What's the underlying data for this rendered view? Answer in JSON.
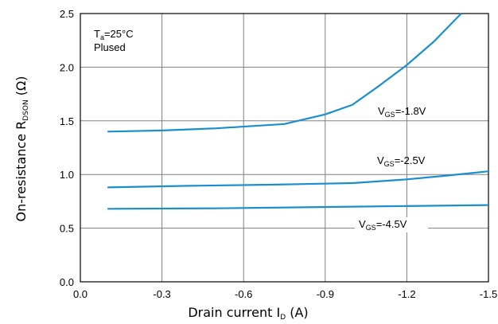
{
  "chart_data": {
    "type": "line",
    "xlabel": {
      "main": "Drain  current  I",
      "sub": "D",
      "unit": " (A)"
    },
    "ylabel": {
      "main": "On-resistance R",
      "sub": "DSON",
      "unit": " (Ω)"
    },
    "x_ticks": [
      "0.0",
      "-0.3",
      "-0.6",
      "-0.9",
      "-1.2",
      "-1.5"
    ],
    "y_ticks": [
      "0.0",
      "0.5",
      "1.0",
      "1.5",
      "2.0",
      "2.5"
    ],
    "xlim": [
      0,
      -1.5
    ],
    "ylim": [
      0,
      2.5
    ],
    "grid": true,
    "line_color": "#1a8fd0",
    "conditions": {
      "temp_main": "T",
      "temp_sub": "a",
      "temp_value": "=25°C",
      "mode": "Plused"
    },
    "series": [
      {
        "name": {
          "main": "V",
          "sub": "GS",
          "value": "=-1.8V"
        },
        "x": [
          -0.1,
          -0.3,
          -0.5,
          -0.75,
          -0.9,
          -1.0,
          -1.1,
          -1.2,
          -1.3,
          -1.4
        ],
        "y": [
          1.4,
          1.41,
          1.43,
          1.47,
          1.56,
          1.65,
          1.83,
          2.02,
          2.24,
          2.5
        ]
      },
      {
        "name": {
          "main": "V",
          "sub": "GS",
          "value": "=-2.5V"
        },
        "x": [
          -0.1,
          -0.4,
          -0.7,
          -1.0,
          -1.2,
          -1.35,
          -1.5
        ],
        "y": [
          0.88,
          0.895,
          0.905,
          0.92,
          0.955,
          0.99,
          1.03
        ]
      },
      {
        "name": {
          "main": "V",
          "sub": "GS",
          "value": "=-4.5V"
        },
        "x": [
          -0.1,
          -0.5,
          -1.0,
          -1.5
        ],
        "y": [
          0.68,
          0.685,
          0.7,
          0.715
        ]
      }
    ]
  }
}
